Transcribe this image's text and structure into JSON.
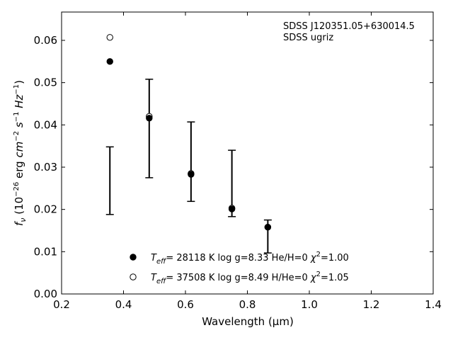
{
  "chart_data": {
    "type": "scatter",
    "title": "",
    "xlabel": "Wavelength (μm)",
    "ylabel": "fν (10⁻²⁶ erg cm⁻² s⁻¹ Hz⁻¹)",
    "xlim": [
      0.2,
      1.4
    ],
    "ylim": [
      0.0,
      0.0667
    ],
    "xticks": [
      0.2,
      0.4,
      0.6,
      0.8,
      1.0,
      1.2,
      1.4
    ],
    "xtick_labels": [
      "0.2",
      "0.4",
      "0.6",
      "0.8",
      "1.0",
      "1.2",
      "1.4"
    ],
    "yticks": [
      0.0,
      0.01,
      0.02,
      0.03,
      0.04,
      0.05,
      0.06
    ],
    "ytick_labels": [
      "0.00",
      "0.01",
      "0.02",
      "0.03",
      "0.04",
      "0.05",
      "0.06"
    ],
    "grid": false,
    "legend_position": "bottom-center",
    "annotation_lines": [
      "SDSS J120351.05+630014.5",
      "SDSS ugriz"
    ],
    "observed": {
      "bands": [
        "u",
        "g",
        "r",
        "i",
        "z"
      ],
      "x": [
        0.356,
        0.483,
        0.618,
        0.75,
        0.866
      ],
      "y_low": [
        0.0188,
        0.0275,
        0.0219,
        0.0183,
        0.0097
      ],
      "y_high": [
        0.0348,
        0.0508,
        0.0407,
        0.034,
        0.0175
      ]
    },
    "series": [
      {
        "name": "Teff= 28118 K  log g=8.33  He/H=0  χ²=1.00",
        "marker": "filled-circle",
        "x": [
          0.356,
          0.483,
          0.618,
          0.75,
          0.866
        ],
        "y": [
          0.055,
          0.0416,
          0.0283,
          0.0201,
          0.0158
        ]
      },
      {
        "name": "Teff= 37508 K  log g=8.49  H/He=0  χ²=1.05",
        "marker": "open-circle",
        "x": [
          0.356,
          0.483,
          0.618,
          0.75,
          0.866
        ],
        "y": [
          0.0607,
          0.042,
          0.0285,
          0.0203,
          0.0158
        ]
      }
    ],
    "legend": [
      {
        "marker": "filled-circle",
        "teff": "= 28118 K  log g=8.33  He/H=0  ",
        "chi": "χ",
        "chi_rest": "=1.00"
      },
      {
        "marker": "open-circle",
        "teff": "= 37508 K  log g=8.49  H/He=0  ",
        "chi": "χ",
        "chi_rest": "=1.05"
      }
    ],
    "colors": {
      "axes": "#000000",
      "marker": "#000000",
      "background": "#ffffff"
    }
  }
}
